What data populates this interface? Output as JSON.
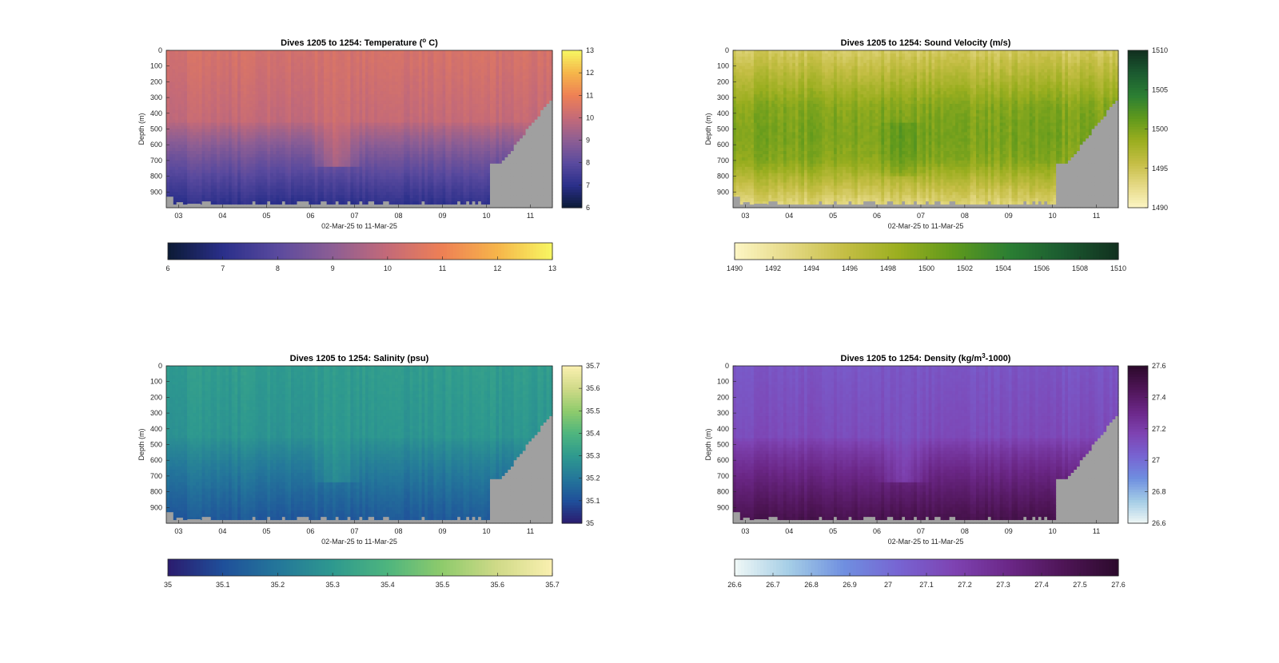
{
  "figure": {
    "background": "#ffffff",
    "missing_color": "#a0a0a0"
  },
  "chart_data": [
    {
      "type": "heatmap",
      "title": "Dives 1205 to 1254: Temperature (°C)",
      "title_parts": [
        "Dives 1205 to 1254: Temperature (",
        "o",
        " C)"
      ],
      "title_sup_index": 1,
      "xlabel": "02-Mar-25 to 11-Mar-25",
      "ylabel": "Depth (m)",
      "x_ticks": [
        "03",
        "04",
        "05",
        "06",
        "07",
        "08",
        "09",
        "10",
        "11"
      ],
      "x_range": [
        2.72,
        11.5
      ],
      "y_ticks": [
        0,
        100,
        200,
        300,
        400,
        500,
        600,
        700,
        800,
        900
      ],
      "y_range": [
        0,
        1000
      ],
      "y_reversed": true,
      "colorbar_ticks": [
        6,
        7,
        8,
        9,
        10,
        11,
        12,
        13
      ],
      "horizontal_colorbar_ticks": [
        6,
        7,
        8,
        9,
        10,
        11,
        12,
        13
      ],
      "clim": [
        6,
        13
      ],
      "colormap": [
        "#0b1a35",
        "#2a2f8a",
        "#5a4a9e",
        "#8d5e94",
        "#c46a78",
        "#ee8055",
        "#f6b54a",
        "#f7f762"
      ],
      "surface_value": 10.4,
      "deep_value": 7.0,
      "gradient_start_depth": 450,
      "shallow_plume_dates": [
        6.1,
        7.1
      ]
    },
    {
      "type": "heatmap",
      "title": "Dives 1205 to 1254: Sound Velocity (m/s)",
      "title_parts": [
        "Dives 1205 to 1254: Sound Velocity (m/s)"
      ],
      "xlabel": "02-Mar-25 to 11-Mar-25",
      "ylabel": "Depth (m)",
      "x_ticks": [
        "03",
        "04",
        "05",
        "06",
        "07",
        "08",
        "09",
        "10",
        "11"
      ],
      "x_range": [
        2.72,
        11.5
      ],
      "y_ticks": [
        0,
        100,
        200,
        300,
        400,
        500,
        600,
        700,
        800,
        900
      ],
      "y_range": [
        0,
        1000
      ],
      "y_reversed": true,
      "colorbar_ticks": [
        1490,
        1495,
        1500,
        1505,
        1510
      ],
      "horizontal_colorbar_ticks": [
        1490,
        1492,
        1494,
        1496,
        1498,
        1500,
        1502,
        1504,
        1506,
        1508,
        1510
      ],
      "clim": [
        1490,
        1510
      ],
      "colormap": [
        "#fdf6c5",
        "#e5d985",
        "#c5be45",
        "#9aae1f",
        "#5f991c",
        "#2b7f33",
        "#1b5a30",
        "#11301f"
      ],
      "surface_value": 1494.5,
      "mid_value": 1499.5,
      "deep_value": 1493,
      "shallow_plume_dates": [
        6.1,
        7.1
      ]
    },
    {
      "type": "heatmap",
      "title": "Dives 1205 to 1254: Salinity (psu)",
      "title_parts": [
        "Dives 1205 to 1254: Salinity (psu)"
      ],
      "xlabel": "02-Mar-25 to 11-Mar-25",
      "ylabel": "Depth (m)",
      "x_ticks": [
        "03",
        "04",
        "05",
        "06",
        "07",
        "08",
        "09",
        "10",
        "11"
      ],
      "x_range": [
        2.72,
        11.5
      ],
      "y_ticks": [
        0,
        100,
        200,
        300,
        400,
        500,
        600,
        700,
        800,
        900
      ],
      "y_range": [
        0,
        1000
      ],
      "y_reversed": true,
      "colorbar_ticks": [
        35,
        35.1,
        35.2,
        35.3,
        35.4,
        35.5,
        35.6,
        35.7
      ],
      "horizontal_colorbar_ticks": [
        35,
        35.1,
        35.2,
        35.3,
        35.4,
        35.5,
        35.6,
        35.7
      ],
      "clim": [
        35,
        35.7
      ],
      "colormap": [
        "#2b1b6e",
        "#1f4f9a",
        "#24779a",
        "#2e998f",
        "#4eb57e",
        "#8fcb6c",
        "#d0da88",
        "#faf0b0"
      ],
      "surface_value": 35.31,
      "deep_value": 35.12,
      "gradient_start_depth": 450,
      "shallow_plume_dates": [
        6.1,
        7.1
      ]
    },
    {
      "type": "heatmap",
      "title": "Dives 1205 to 1254: Density (kg/m³-1000)",
      "title_parts": [
        "Dives 1205 to 1254: Density (kg/m",
        "3",
        "-1000)"
      ],
      "title_sup_index": 1,
      "xlabel": "02-Mar-25 to 11-Mar-25",
      "ylabel": "Depth (m)",
      "x_ticks": [
        "03",
        "04",
        "05",
        "06",
        "07",
        "08",
        "09",
        "10",
        "11"
      ],
      "x_range": [
        2.72,
        11.5
      ],
      "y_ticks": [
        0,
        100,
        200,
        300,
        400,
        500,
        600,
        700,
        800,
        900
      ],
      "y_range": [
        0,
        1000
      ],
      "y_reversed": true,
      "colorbar_ticks": [
        26.6,
        26.8,
        27,
        27.2,
        27.4,
        27.6
      ],
      "horizontal_colorbar_ticks": [
        26.6,
        26.7,
        26.8,
        26.9,
        27,
        27.1,
        27.2,
        27.3,
        27.4,
        27.5,
        27.6
      ],
      "clim": [
        26.6,
        27.6
      ],
      "colormap": [
        "#f0f8f6",
        "#a4cde6",
        "#6f8fe0",
        "#7764d2",
        "#7e43b2",
        "#6b2787",
        "#4e1556",
        "#2c0a2c"
      ],
      "surface_value": 27.09,
      "deep_value": 27.5,
      "gradient_start_depth": 450,
      "shallow_plume_dates": [
        6.1,
        7.1
      ]
    }
  ]
}
